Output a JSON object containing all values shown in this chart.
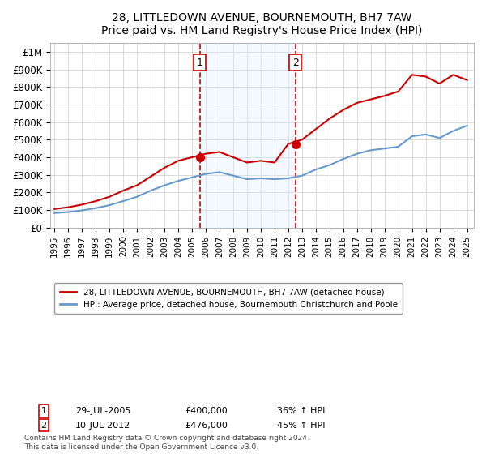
{
  "title": "28, LITTLEDOWN AVENUE, BOURNEMOUTH, BH7 7AW",
  "subtitle": "Price paid vs. HM Land Registry's House Price Index (HPI)",
  "legend_line1": "28, LITTLEDOWN AVENUE, BOURNEMOUTH, BH7 7AW (detached house)",
  "legend_line2": "HPI: Average price, detached house, Bournemouth Christchurch and Poole",
  "annotation1_label": "1",
  "annotation1_date": "29-JUL-2005",
  "annotation1_price": "£400,000",
  "annotation1_hpi": "36% ↑ HPI",
  "annotation2_label": "2",
  "annotation2_date": "10-JUL-2012",
  "annotation2_price": "£476,000",
  "annotation2_hpi": "45% ↑ HPI",
  "footnote": "Contains HM Land Registry data © Crown copyright and database right 2024.\nThis data is licensed under the Open Government Licence v3.0.",
  "sale1_year": 2005.57,
  "sale2_year": 2012.53,
  "sale1_price": 400000,
  "sale2_price": 476000,
  "red_color": "#cc0000",
  "blue_color": "#6699cc",
  "shade_color": "#ddeeff",
  "grid_color": "#cccccc",
  "ylim": [
    0,
    1050000
  ],
  "xlim_start": 1995,
  "xlim_end": 2025.5,
  "hpi_years": [
    1995,
    1996,
    1997,
    1998,
    1999,
    2000,
    2001,
    2002,
    2003,
    2004,
    2005,
    2006,
    2007,
    2008,
    2009,
    2010,
    2011,
    2012,
    2013,
    2014,
    2015,
    2016,
    2017,
    2018,
    2019,
    2020,
    2021,
    2022,
    2023,
    2024,
    2025
  ],
  "hpi_values": [
    82000,
    88000,
    97000,
    110000,
    127000,
    150000,
    175000,
    210000,
    240000,
    265000,
    285000,
    305000,
    315000,
    295000,
    275000,
    280000,
    275000,
    280000,
    295000,
    330000,
    355000,
    390000,
    420000,
    440000,
    450000,
    460000,
    520000,
    530000,
    510000,
    550000,
    580000
  ],
  "red_years": [
    1995,
    1996,
    1997,
    1998,
    1999,
    2000,
    2001,
    2002,
    2003,
    2004,
    2005,
    2006,
    2007,
    2008,
    2009,
    2010,
    2011,
    2012,
    2013,
    2014,
    2015,
    2016,
    2017,
    2018,
    2019,
    2020,
    2021,
    2022,
    2023,
    2024,
    2025
  ],
  "red_values": [
    105000,
    115000,
    130000,
    150000,
    175000,
    210000,
    240000,
    290000,
    340000,
    380000,
    400000,
    420000,
    430000,
    400000,
    370000,
    380000,
    370000,
    476000,
    500000,
    560000,
    620000,
    670000,
    710000,
    730000,
    750000,
    775000,
    870000,
    860000,
    820000,
    870000,
    840000
  ]
}
